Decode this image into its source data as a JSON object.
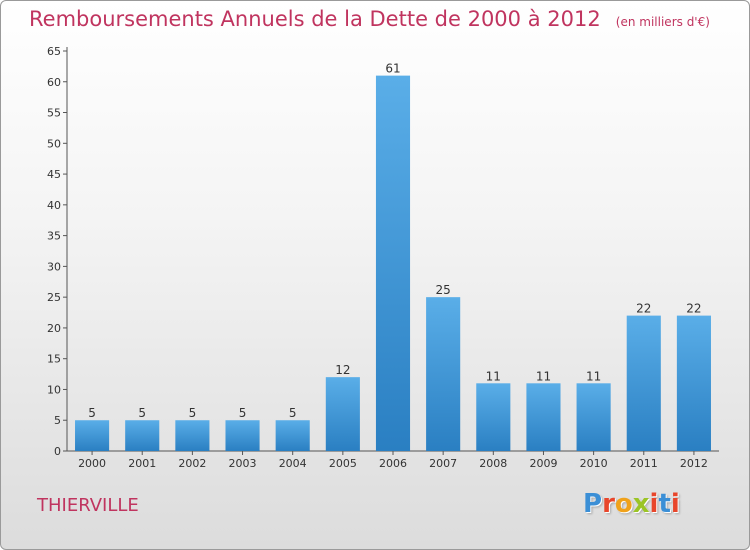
{
  "header": {
    "title": "Remboursements Annuels de la Dette de 2000 à 2012",
    "unit": "(en milliers d'€)"
  },
  "commune": "THIERVILLE",
  "logo": {
    "text": "Proxiti",
    "colors": [
      "#3b8fd6",
      "#e8462b",
      "#f0a21b",
      "#9bc425",
      "#e8462b",
      "#3b8fd6",
      "#e8462b"
    ]
  },
  "colors": {
    "title": "#c0345f",
    "bar_top": "#5aaee8",
    "bar_bottom": "#2a7fc2",
    "axis": "#555555"
  },
  "chart_data": {
    "type": "bar",
    "title": "Remboursements Annuels de la Dette de 2000 à 2012",
    "categories": [
      "2000",
      "2001",
      "2002",
      "2003",
      "2004",
      "2005",
      "2006",
      "2007",
      "2008",
      "2009",
      "2010",
      "2011",
      "2012"
    ],
    "values": [
      5,
      5,
      5,
      5,
      5,
      12,
      61,
      25,
      11,
      11,
      11,
      22,
      22
    ],
    "ylim": [
      0,
      65
    ],
    "yticks": [
      0,
      5,
      10,
      15,
      20,
      25,
      30,
      35,
      40,
      45,
      50,
      55,
      60,
      65
    ],
    "grid": false,
    "legend": "none"
  }
}
